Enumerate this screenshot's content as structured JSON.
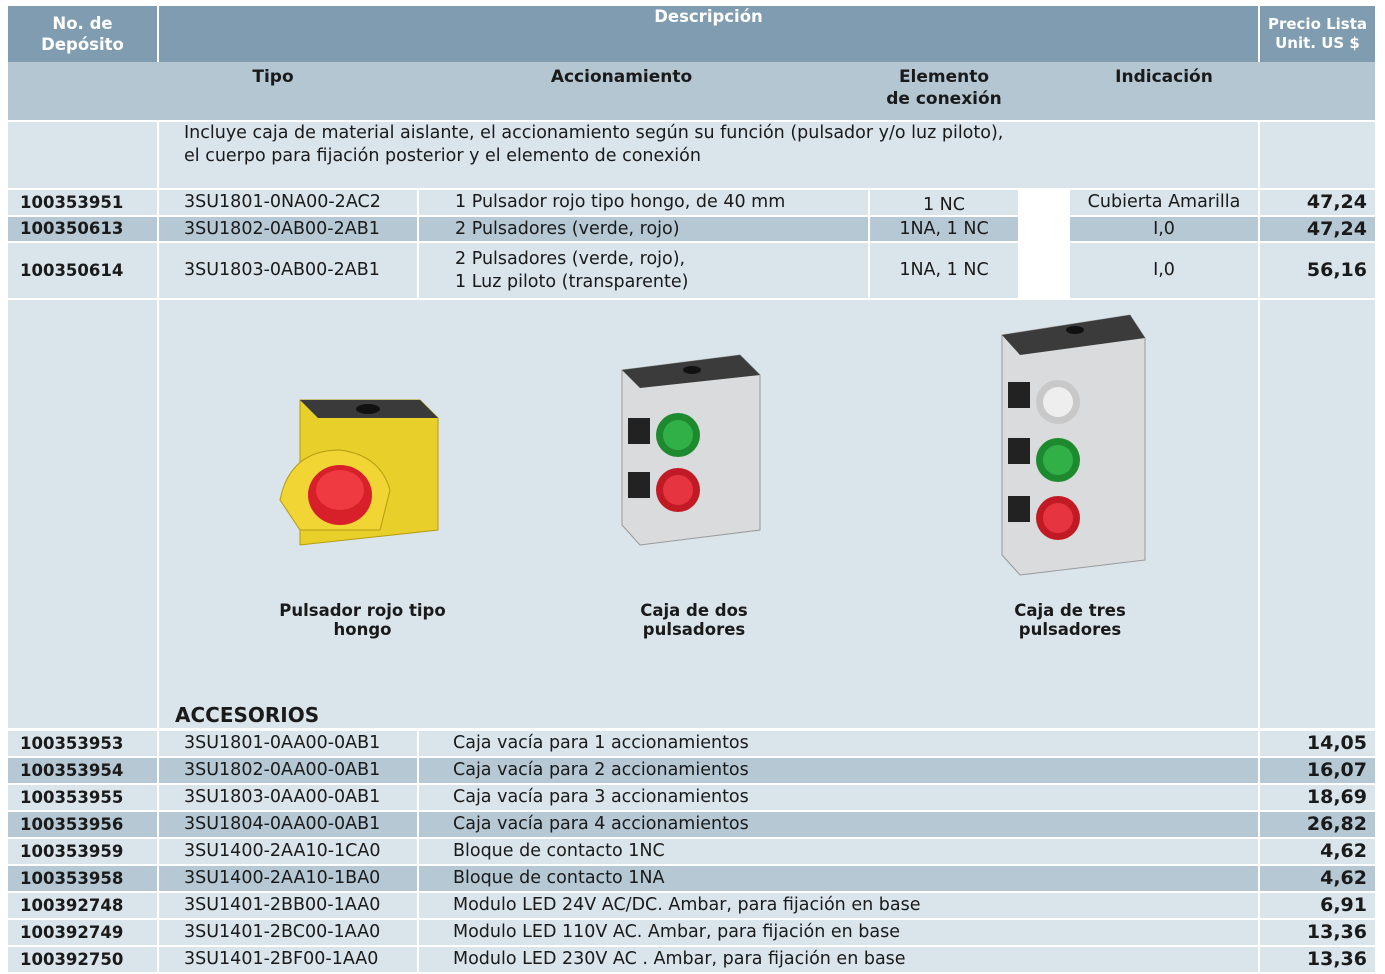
{
  "header": {
    "deposit": "No. de\nDepósito",
    "description": "Descripción",
    "price": "Precio Lista\nUnit. US $",
    "tipo": "Tipo",
    "accionamiento": "Accionamiento",
    "elemento": "Elemento\nde conexión",
    "indicacion": "Indicación"
  },
  "intro": "Incluye caja de material aislante, el accionamiento según su función (pulsador y/o luz piloto),\nel cuerpo para fijación posterior y el elemento de conexión",
  "products": [
    [
      "100353951",
      "3SU1801-0NA00-2AC2",
      "1 Pulsador rojo tipo hongo, de 40 mm",
      "1 NC",
      "Cubierta Amarilla",
      "47,24"
    ],
    [
      "100350613",
      "3SU1802-0AB00-2AB1",
      "2 Pulsadores (verde, rojo)",
      "1NA, 1 NC",
      "I,0",
      "47,24"
    ],
    [
      "100350614",
      "3SU1803-0AB00-2AB1",
      "2 Pulsadores (verde, rojo),\n1 Luz piloto (transparente)",
      "1NA, 1 NC",
      "I,0",
      "56,16"
    ]
  ],
  "images": [
    "Pulsador rojo tipo hongo",
    "Caja de dos pulsadores",
    "Caja de tres pulsadores"
  ],
  "accessories": {
    "title": "ACCESORIOS",
    "rows": [
      [
        "100353953",
        "3SU1801-0AA00-0AB1",
        "Caja vacía para 1 accionamientos",
        "14,05"
      ],
      [
        "100353954",
        "3SU1802-0AA00-0AB1",
        "Caja vacía para 2 accionamientos",
        "16,07"
      ],
      [
        "100353955",
        "3SU1803-0AA00-0AB1",
        "Caja vacía para 3 accionamientos",
        "18,69"
      ],
      [
        "100353956",
        "3SU1804-0AA00-0AB1",
        "Caja vacía para 4 accionamientos",
        "26,82"
      ],
      [
        "100353959",
        "3SU1400-2AA10-1CA0",
        "Bloque de contacto 1NC",
        "4,62"
      ],
      [
        "100353958",
        "3SU1400-2AA10-1BA0",
        "Bloque de contacto 1NA",
        "4,62"
      ],
      [
        "100392748",
        "3SU1401-2BB00-1AA0",
        "Modulo LED  24V AC/DC. Ambar, para fijación en base",
        "6,91"
      ],
      [
        "100392749",
        "3SU1401-2BC00-1AA0",
        "Modulo LED  110V AC. Ambar, para fijación en base",
        "13,36"
      ],
      [
        "100392750",
        "3SU1401-2BF00-1AA0",
        "Modulo LED  230V AC . Ambar, para fijación en base",
        "13,36"
      ]
    ]
  }
}
